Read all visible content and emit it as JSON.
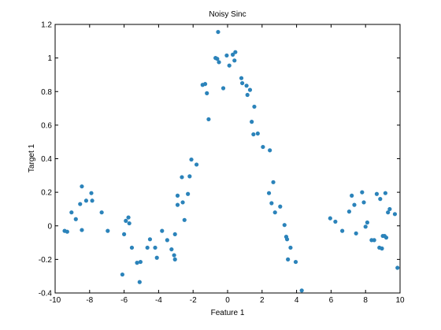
{
  "chart_data": {
    "type": "scatter",
    "title": "Noisy Sinc",
    "xlabel": "Feature 1",
    "ylabel": "Target 1",
    "xlim": [
      -10,
      10
    ],
    "ylim": [
      -0.4,
      1.2
    ],
    "xticks": [
      -10,
      -8,
      -6,
      -4,
      -2,
      0,
      2,
      4,
      6,
      8,
      10
    ],
    "yticks": [
      -0.4,
      -0.2,
      0,
      0.2,
      0.4,
      0.6,
      0.8,
      1,
      1.2
    ],
    "xtick_labels": [
      "-10",
      "-8",
      "-6",
      "-4",
      "-2",
      "0",
      "2",
      "4",
      "6",
      "8",
      "10"
    ],
    "ytick_labels": [
      "-0.4",
      "-0.2",
      "0",
      "0.2",
      "0.4",
      "0.6",
      "0.8",
      "1",
      "1.2"
    ],
    "grid": false,
    "marker_color": "#2b83ba",
    "series": [
      {
        "points": [
          [
            -9.45,
            -0.03
          ],
          [
            -9.3,
            -0.035
          ],
          [
            -9.05,
            0.08
          ],
          [
            -8.8,
            0.04
          ],
          [
            -8.55,
            0.13
          ],
          [
            -8.45,
            0.235
          ],
          [
            -8.45,
            -0.025
          ],
          [
            -8.2,
            0.15
          ],
          [
            -7.9,
            0.195
          ],
          [
            -7.85,
            0.15
          ],
          [
            -7.3,
            0.08
          ],
          [
            -6.95,
            -0.03
          ],
          [
            -6.1,
            -0.29
          ],
          [
            -6.0,
            -0.05
          ],
          [
            -5.9,
            0.03
          ],
          [
            -5.75,
            0.05
          ],
          [
            -5.7,
            0.015
          ],
          [
            -5.55,
            -0.13
          ],
          [
            -5.25,
            -0.22
          ],
          [
            -5.1,
            -0.335
          ],
          [
            -5.05,
            -0.215
          ],
          [
            -4.65,
            -0.13
          ],
          [
            -4.5,
            -0.08
          ],
          [
            -4.2,
            -0.13
          ],
          [
            -4.1,
            -0.19
          ],
          [
            -3.8,
            -0.03
          ],
          [
            -3.5,
            -0.085
          ],
          [
            -3.25,
            -0.14
          ],
          [
            -3.1,
            -0.175
          ],
          [
            -3.05,
            -0.2
          ],
          [
            -3.05,
            -0.05
          ],
          [
            -2.9,
            0.18
          ],
          [
            -2.9,
            0.125
          ],
          [
            -2.65,
            0.29
          ],
          [
            -2.6,
            0.14
          ],
          [
            -2.5,
            0.035
          ],
          [
            -2.3,
            0.19
          ],
          [
            -2.2,
            0.295
          ],
          [
            -2.1,
            0.395
          ],
          [
            -1.8,
            0.365
          ],
          [
            -1.45,
            0.84
          ],
          [
            -1.3,
            0.845
          ],
          [
            -1.2,
            0.79
          ],
          [
            -1.1,
            0.635
          ],
          [
            -0.7,
            1.0
          ],
          [
            -0.6,
            0.995
          ],
          [
            -0.5,
            0.975
          ],
          [
            -0.55,
            1.155
          ],
          [
            -0.25,
            0.82
          ],
          [
            -0.05,
            1.015
          ],
          [
            0.1,
            0.955
          ],
          [
            0.3,
            1.02
          ],
          [
            0.4,
            0.985
          ],
          [
            0.45,
            1.035
          ],
          [
            0.8,
            0.88
          ],
          [
            0.85,
            0.85
          ],
          [
            1.1,
            0.835
          ],
          [
            1.15,
            0.78
          ],
          [
            1.3,
            0.81
          ],
          [
            1.4,
            0.62
          ],
          [
            1.5,
            0.545
          ],
          [
            1.55,
            0.71
          ],
          [
            1.75,
            0.55
          ],
          [
            2.05,
            0.47
          ],
          [
            2.4,
            0.195
          ],
          [
            2.45,
            0.45
          ],
          [
            2.55,
            0.135
          ],
          [
            2.65,
            0.26
          ],
          [
            2.75,
            0.08
          ],
          [
            3.05,
            0.115
          ],
          [
            3.3,
            0.005
          ],
          [
            3.4,
            -0.065
          ],
          [
            3.45,
            -0.08
          ],
          [
            3.5,
            -0.2
          ],
          [
            3.65,
            -0.13
          ],
          [
            3.95,
            -0.215
          ],
          [
            4.3,
            -0.385
          ],
          [
            5.95,
            0.045
          ],
          [
            6.25,
            0.025
          ],
          [
            6.65,
            -0.03
          ],
          [
            7.05,
            0.085
          ],
          [
            7.2,
            0.18
          ],
          [
            7.35,
            0.125
          ],
          [
            7.45,
            -0.045
          ],
          [
            7.8,
            0.2
          ],
          [
            7.9,
            0.14
          ],
          [
            8.0,
            -0.005
          ],
          [
            8.1,
            0.02
          ],
          [
            8.35,
            -0.085
          ],
          [
            8.5,
            -0.085
          ],
          [
            8.65,
            0.19
          ],
          [
            8.8,
            -0.13
          ],
          [
            8.85,
            0.16
          ],
          [
            8.95,
            -0.135
          ],
          [
            9.0,
            -0.06
          ],
          [
            9.1,
            -0.06
          ],
          [
            9.15,
            0.195
          ],
          [
            9.2,
            -0.07
          ],
          [
            9.3,
            0.08
          ],
          [
            9.4,
            0.1
          ],
          [
            9.7,
            0.07
          ],
          [
            9.85,
            -0.25
          ]
        ]
      }
    ]
  }
}
